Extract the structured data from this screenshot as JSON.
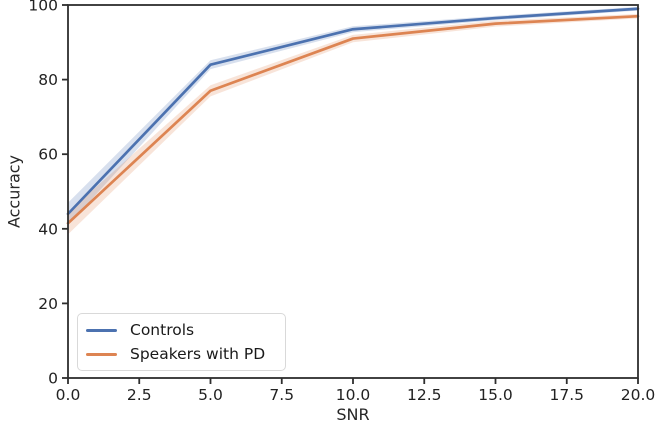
{
  "figure": {
    "background": "#ffffff",
    "spine_color": "#2e2e2e",
    "tick_label_color": "#222222"
  },
  "chart_data": {
    "type": "line",
    "title": "",
    "xlabel": "SNR",
    "ylabel": "Accuracy",
    "xlim": [
      0,
      20
    ],
    "ylim": [
      0,
      100
    ],
    "grid": false,
    "x_ticks": [
      0,
      2.5,
      5,
      7.5,
      10,
      12.5,
      15,
      17.5,
      20
    ],
    "x_tick_labels": [
      "0.0",
      "2.5",
      "5.0",
      "7.5",
      "10.0",
      "12.5",
      "15.0",
      "17.5",
      "20.0"
    ],
    "y_ticks": [
      0,
      20,
      40,
      60,
      80,
      100
    ],
    "y_tick_labels": [
      "0",
      "20",
      "40",
      "60",
      "80",
      "100"
    ],
    "x": [
      0,
      5,
      10,
      15,
      20
    ],
    "series": [
      {
        "name": "Controls",
        "color": "#4c72b0",
        "values": [
          44,
          84,
          93.5,
          96.5,
          99
        ],
        "ci": [
          3,
          1.2,
          0.8,
          0.6,
          0.5
        ]
      },
      {
        "name": "Speakers with PD",
        "color": "#dd8452",
        "values": [
          41.5,
          77,
          91,
          95,
          97
        ],
        "ci": [
          3,
          1.5,
          1.0,
          0.8,
          0.6
        ]
      }
    ],
    "legend": {
      "position": "lower left",
      "labels": [
        "Controls",
        "Speakers with PD"
      ]
    }
  }
}
